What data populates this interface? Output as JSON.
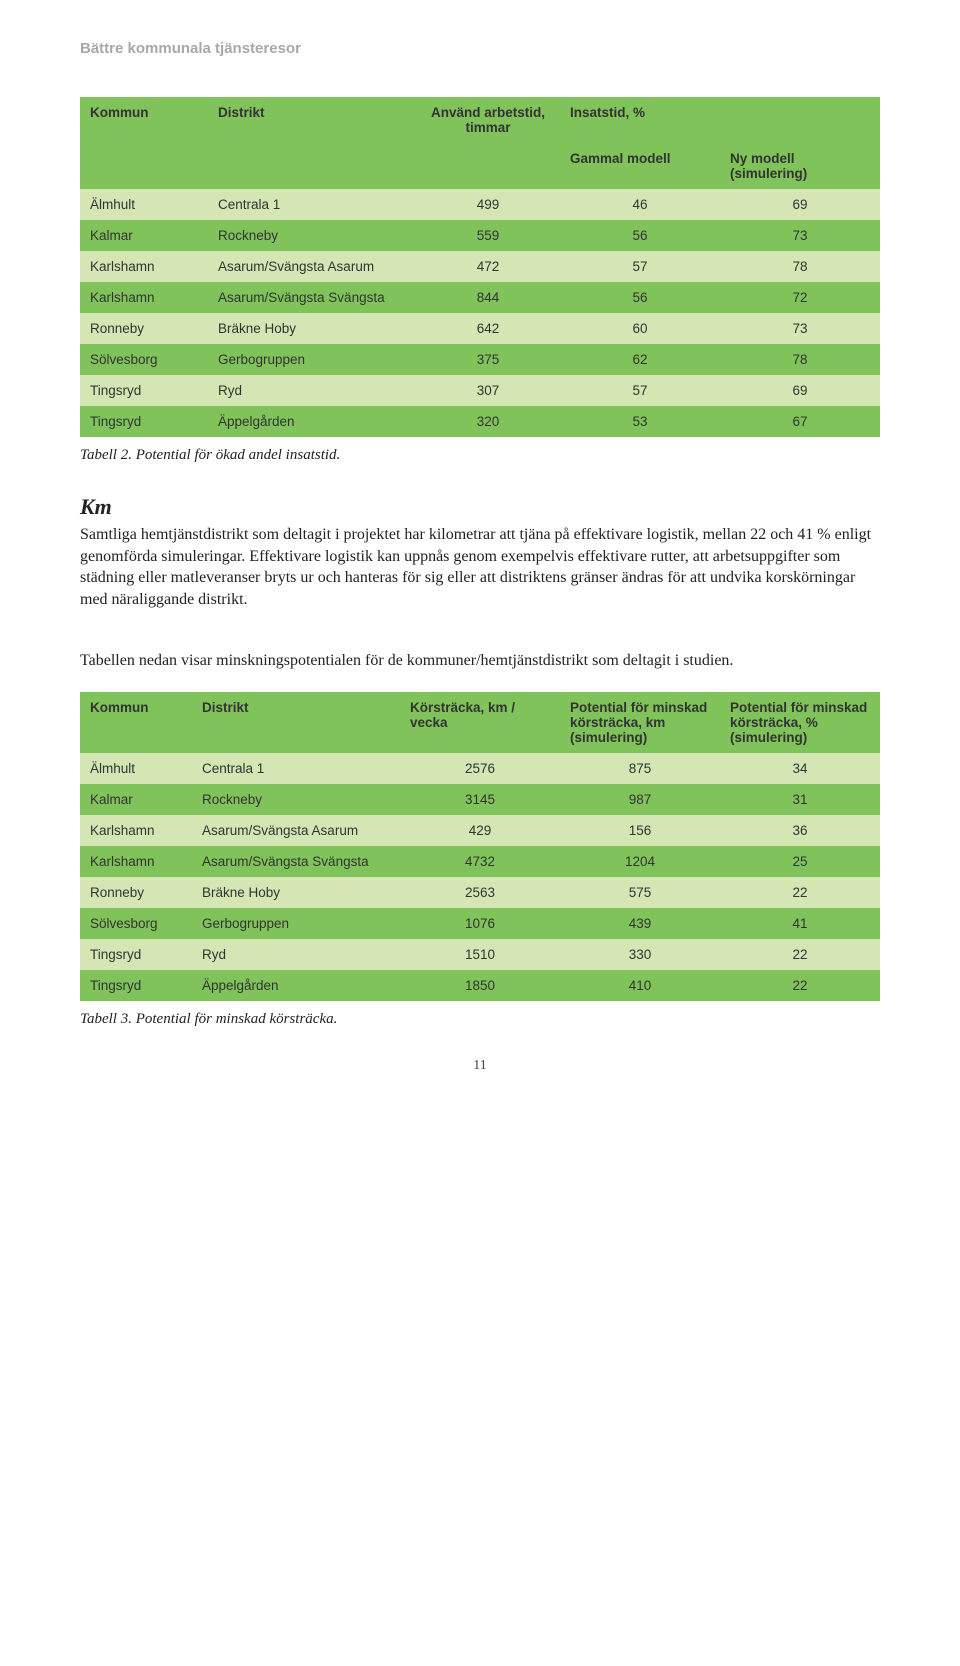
{
  "running_head": "Bättre kommunala tjänsteresor",
  "table1": {
    "colors": {
      "header_bg": "#80c35a",
      "row_dark": "#80c35a",
      "row_light": "#d3e6b3",
      "text": "#333333"
    },
    "fontsize": 13.5,
    "header_row1": {
      "c1": "Kommun",
      "c2": "Distrikt",
      "c3": "Använd arbetstid, timmar",
      "c4": "Insatstid, %",
      "c5": ""
    },
    "header_row2": {
      "c1": "",
      "c2": "",
      "c3": "",
      "c4": "Gammal modell",
      "c5": "Ny modell (simulering)"
    },
    "rows": [
      {
        "c1": "Älmhult",
        "c2": "Centrala 1",
        "c3": "499",
        "c4": "46",
        "c5": "69"
      },
      {
        "c1": "Kalmar",
        "c2": "Rockneby",
        "c3": "559",
        "c4": "56",
        "c5": "73"
      },
      {
        "c1": "Karlshamn",
        "c2": "Asarum/Svängsta Asarum",
        "c3": "472",
        "c4": "57",
        "c5": "78"
      },
      {
        "c1": "Karlshamn",
        "c2": "Asarum/Svängsta Svängsta",
        "c3": "844",
        "c4": "56",
        "c5": "72"
      },
      {
        "c1": "Ronneby",
        "c2": "Bräkne Hoby",
        "c3": "642",
        "c4": "60",
        "c5": "73"
      },
      {
        "c1": "Sölvesborg",
        "c2": "Gerbogruppen",
        "c3": "375",
        "c4": "62",
        "c5": "78"
      },
      {
        "c1": "Tingsryd",
        "c2": "Ryd",
        "c3": "307",
        "c4": "57",
        "c5": "69"
      },
      {
        "c1": "Tingsryd",
        "c2": "Äppelgården",
        "c3": "320",
        "c4": "53",
        "c5": "67"
      }
    ]
  },
  "caption1": "Tabell 2. Potential för ökad andel insatstid.",
  "section_heading": "Km",
  "para1": "Samtliga hemtjänstdistrikt som deltagit i projektet har kilometrar att tjäna på effektivare logistik, mellan 22 och 41 % enligt genomförda simuleringar. Effektivare logistik kan uppnås genom exempelvis effektivare rutter, att arbetsuppgifter som städning eller matleveranser bryts ur och hanteras för sig eller att distriktens gränser ändras för att undvika korskörningar med näraliggande distrikt.",
  "para2": "Tabellen nedan visar minskningspotentialen för de kommuner/hemtjänstdistrikt som deltagit i studien.",
  "table2": {
    "colors": {
      "header_bg": "#80c35a",
      "row_dark": "#80c35a",
      "row_light": "#d3e6b3",
      "text": "#333333"
    },
    "fontsize": 13.5,
    "header": {
      "c1": "Kommun",
      "c2": "Distrikt",
      "c3": "Körsträcka, km / vecka",
      "c4": "Potential för minskad körsträcka, km (simulering)",
      "c5": "Potential för minskad körsträcka, % (simulering)"
    },
    "rows": [
      {
        "c1": "Älmhult",
        "c2": "Centrala 1",
        "c3": "2576",
        "c4": "875",
        "c5": "34"
      },
      {
        "c1": "Kalmar",
        "c2": "Rockneby",
        "c3": "3145",
        "c4": "987",
        "c5": "31"
      },
      {
        "c1": "Karlshamn",
        "c2": "Asarum/Svängsta Asarum",
        "c3": "429",
        "c4": "156",
        "c5": "36"
      },
      {
        "c1": "Karlshamn",
        "c2": "Asarum/Svängsta Svängsta",
        "c3": "4732",
        "c4": "1204",
        "c5": "25"
      },
      {
        "c1": "Ronneby",
        "c2": "Bräkne Hoby",
        "c3": "2563",
        "c4": "575",
        "c5": "22"
      },
      {
        "c1": "Sölvesborg",
        "c2": "Gerbogruppen",
        "c3": "1076",
        "c4": "439",
        "c5": "41"
      },
      {
        "c1": "Tingsryd",
        "c2": "Ryd",
        "c3": "1510",
        "c4": "330",
        "c5": "22"
      },
      {
        "c1": "Tingsryd",
        "c2": "Äppelgården",
        "c3": "1850",
        "c4": "410",
        "c5": "22"
      }
    ]
  },
  "caption2": "Tabell 3. Potential för minskad körsträcka.",
  "page_number": "11"
}
